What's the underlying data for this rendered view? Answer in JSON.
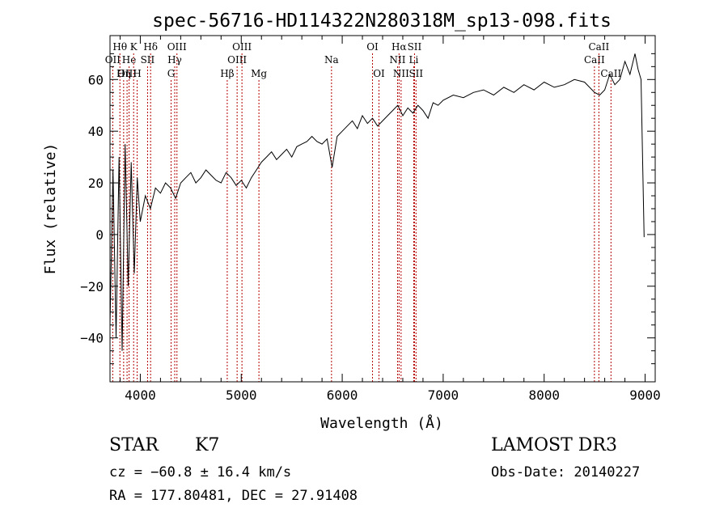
{
  "chart_data": {
    "type": "line",
    "title": "spec-56716-HD114322N280318M_sp13-098.fits",
    "xlabel": "Wavelength (Å)",
    "ylabel": "Flux (relative)",
    "xlim": [
      3700,
      9100
    ],
    "ylim": [
      -57,
      77
    ],
    "xticks": [
      4000,
      5000,
      6000,
      7000,
      8000,
      9000
    ],
    "xtick_labels": [
      "4000",
      "5000",
      "6000",
      "7000",
      "8000",
      "9000"
    ],
    "yticks": [
      -40,
      -20,
      0,
      20,
      40,
      60
    ],
    "ytick_labels": [
      "−40",
      "−20",
      "0",
      "20",
      "40",
      "60"
    ],
    "grid": false,
    "series": [
      {
        "name": "flux",
        "x": [
          3700,
          3730,
          3760,
          3790,
          3820,
          3850,
          3880,
          3910,
          3940,
          3970,
          4000,
          4050,
          4100,
          4150,
          4200,
          4250,
          4300,
          4350,
          4400,
          4450,
          4500,
          4550,
          4600,
          4650,
          4700,
          4750,
          4800,
          4850,
          4900,
          4950,
          5000,
          5050,
          5100,
          5150,
          5200,
          5250,
          5300,
          5350,
          5400,
          5450,
          5500,
          5550,
          5600,
          5650,
          5700,
          5750,
          5800,
          5850,
          5900,
          5950,
          6000,
          6050,
          6100,
          6150,
          6200,
          6250,
          6300,
          6350,
          6400,
          6450,
          6500,
          6550,
          6600,
          6650,
          6700,
          6750,
          6800,
          6850,
          6900,
          6950,
          7000,
          7100,
          7200,
          7300,
          7400,
          7500,
          7600,
          7700,
          7800,
          7900,
          8000,
          8100,
          8200,
          8300,
          8400,
          8500,
          8550,
          8600,
          8650,
          8700,
          8750,
          8800,
          8850,
          8900,
          8930,
          8960,
          8990
        ],
        "y": [
          -35,
          25,
          -40,
          30,
          -45,
          35,
          -20,
          28,
          -15,
          22,
          5,
          15,
          10,
          18,
          16,
          20,
          18,
          14,
          20,
          22,
          24,
          20,
          22,
          25,
          23,
          21,
          20,
          24,
          22,
          19,
          21,
          18,
          22,
          25,
          28,
          30,
          32,
          29,
          31,
          33,
          30,
          34,
          35,
          36,
          38,
          36,
          35,
          37,
          26,
          38,
          40,
          42,
          44,
          41,
          46,
          43,
          45,
          42,
          44,
          46,
          48,
          50,
          46,
          49,
          47,
          50,
          48,
          45,
          51,
          50,
          52,
          54,
          53,
          55,
          56,
          54,
          57,
          55,
          58,
          56,
          59,
          57,
          58,
          60,
          59,
          55,
          54,
          56,
          62,
          58,
          60,
          67,
          62,
          70,
          64,
          60,
          -1
        ]
      }
    ],
    "line_markers": [
      {
        "label": "Hθ",
        "x": 3798,
        "row": 1
      },
      {
        "label": "OII",
        "x": 3727,
        "row": 2
      },
      {
        "label": "OIII",
        "x": 3869,
        "row": 3
      },
      {
        "label": "He",
        "x": 3889,
        "row": 2
      },
      {
        "label": "Hη",
        "x": 3835,
        "row": 3
      },
      {
        "label": "K",
        "x": 3934,
        "row": 1
      },
      {
        "label": "H",
        "x": 3969,
        "row": 3
      },
      {
        "label": "SII",
        "x": 4072,
        "row": 2
      },
      {
        "label": "Hδ",
        "x": 4102,
        "row": 1
      },
      {
        "label": "OIII",
        "x": 4363,
        "row": 1
      },
      {
        "label": "Hγ",
        "x": 4341,
        "row": 2
      },
      {
        "label": "G",
        "x": 4305,
        "row": 3
      },
      {
        "label": "Hβ",
        "x": 4861,
        "row": 3
      },
      {
        "label": "OIII",
        "x": 4959,
        "row": 2
      },
      {
        "label": "OIII",
        "x": 5007,
        "row": 1
      },
      {
        "label": "Mg",
        "x": 5175,
        "row": 3
      },
      {
        "label": "Na",
        "x": 5894,
        "row": 2
      },
      {
        "label": "OI",
        "x": 6300,
        "row": 1
      },
      {
        "label": "OI",
        "x": 6364,
        "row": 3
      },
      {
        "label": "NII",
        "x": 6548,
        "row": 2
      },
      {
        "label": "Hα",
        "x": 6563,
        "row": 1
      },
      {
        "label": "NII",
        "x": 6583,
        "row": 3
      },
      {
        "label": "Li",
        "x": 6708,
        "row": 2
      },
      {
        "label": "SII",
        "x": 6716,
        "row": 1
      },
      {
        "label": "SII",
        "x": 6731,
        "row": 3
      },
      {
        "label": "CaII",
        "x": 8498,
        "row": 2
      },
      {
        "label": "CaII",
        "x": 8542,
        "row": 1
      },
      {
        "label": "CaII",
        "x": 8662,
        "row": 3
      }
    ]
  },
  "info": {
    "object_type": "STAR",
    "spectral_class": "K7",
    "survey": "LAMOST DR3",
    "cz": "cz = −60.8 ± 16.4 km/s",
    "obs_date": "Obs-Date: 20140227",
    "radec": "RA = 177.80481, DEC =  27.91408"
  }
}
